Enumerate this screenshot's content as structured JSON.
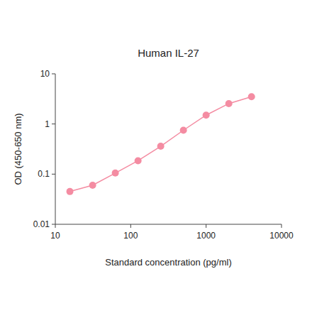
{
  "chart_data": {
    "type": "line",
    "title": "Human IL-27",
    "x_label": "Standard concentration (pg/ml)",
    "y_label": "OD (450-650 nm)",
    "x": [
      15.6,
      31.25,
      62.5,
      125,
      250,
      500,
      1000,
      2000,
      4000
    ],
    "values": [
      0.045,
      0.06,
      0.105,
      0.185,
      0.36,
      0.75,
      1.5,
      2.55,
      3.5
    ],
    "color": "#f48ca2",
    "marker": "circle",
    "log": true,
    "grid": false,
    "xlim": [
      10,
      10000
    ],
    "xticks": [
      10,
      100,
      1000,
      10000
    ],
    "ylim": [
      0.01,
      10
    ],
    "yticks": [
      0.01,
      0.1,
      1,
      10
    ]
  }
}
